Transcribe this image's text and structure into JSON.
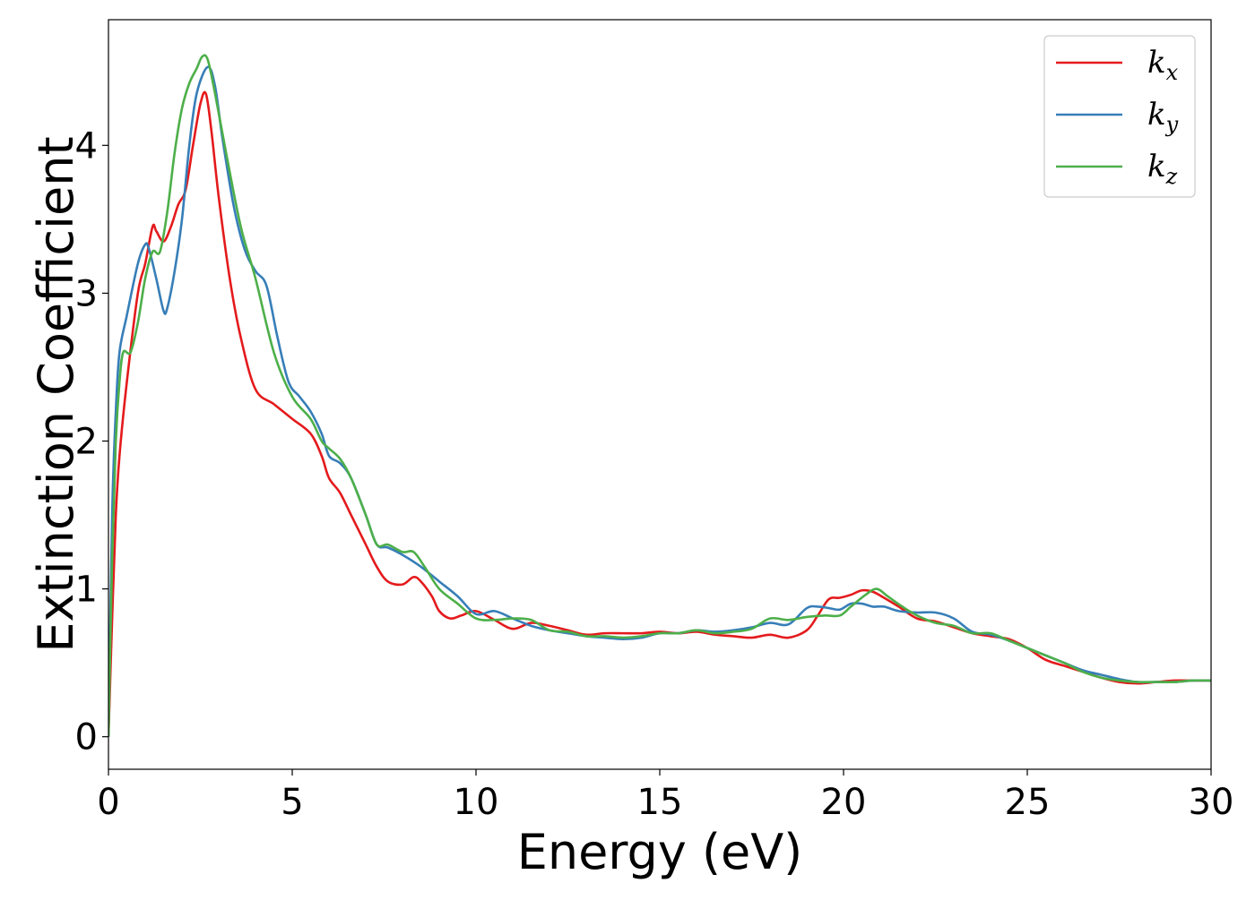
{
  "chart_data": {
    "type": "line",
    "title": "",
    "xlabel": "Energy (eV)",
    "ylabel": "Extinction Coefficient",
    "xlim": [
      0,
      30
    ],
    "ylim": [
      -0.22,
      4.85
    ],
    "xticks": [
      0,
      5,
      10,
      15,
      20,
      25,
      30
    ],
    "yticks": [
      0,
      1,
      2,
      3,
      4
    ],
    "grid": false,
    "legend_position": "top-right",
    "series": [
      {
        "name": "k",
        "subscript": "x",
        "color": "#e41a1c",
        "x": [
          0.0,
          0.1,
          0.2,
          0.3,
          0.5,
          0.8,
          1.0,
          1.2,
          1.3,
          1.5,
          1.7,
          1.9,
          2.1,
          2.3,
          2.5,
          2.65,
          2.8,
          3.0,
          3.3,
          3.6,
          4.0,
          4.5,
          5.0,
          5.5,
          5.8,
          6.0,
          6.3,
          6.6,
          7.0,
          7.3,
          7.6,
          8.0,
          8.3,
          8.5,
          8.8,
          9.0,
          9.3,
          9.6,
          10.0,
          10.5,
          11.0,
          11.5,
          12.0,
          12.5,
          13.0,
          13.5,
          14.0,
          14.5,
          15.0,
          15.5,
          16.0,
          16.5,
          17.0,
          17.5,
          18.0,
          18.5,
          19.0,
          19.3,
          19.6,
          19.9,
          20.2,
          20.5,
          20.8,
          21.1,
          21.5,
          22.0,
          22.5,
          23.0,
          23.5,
          24.0,
          24.5,
          25.0,
          25.5,
          26.0,
          26.5,
          27.0,
          27.5,
          28.0,
          28.5,
          29.0,
          29.5,
          30.0
        ],
        "y": [
          0.0,
          0.8,
          1.5,
          1.9,
          2.4,
          3.0,
          3.2,
          3.45,
          3.42,
          3.35,
          3.45,
          3.6,
          3.7,
          4.0,
          4.28,
          4.35,
          4.1,
          3.65,
          3.1,
          2.7,
          2.35,
          2.25,
          2.15,
          2.05,
          1.9,
          1.75,
          1.65,
          1.5,
          1.3,
          1.15,
          1.05,
          1.03,
          1.08,
          1.05,
          0.95,
          0.85,
          0.8,
          0.82,
          0.85,
          0.79,
          0.73,
          0.77,
          0.75,
          0.72,
          0.69,
          0.7,
          0.7,
          0.7,
          0.71,
          0.7,
          0.71,
          0.69,
          0.68,
          0.67,
          0.69,
          0.67,
          0.72,
          0.82,
          0.93,
          0.94,
          0.96,
          0.99,
          0.98,
          0.94,
          0.88,
          0.8,
          0.78,
          0.74,
          0.7,
          0.68,
          0.66,
          0.6,
          0.52,
          0.48,
          0.44,
          0.4,
          0.37,
          0.36,
          0.37,
          0.38,
          0.38,
          0.38
        ]
      },
      {
        "name": "k",
        "subscript": "y",
        "color": "#377eb8",
        "x": [
          0.0,
          0.1,
          0.2,
          0.3,
          0.5,
          0.8,
          1.0,
          1.1,
          1.3,
          1.5,
          1.6,
          1.8,
          2.0,
          2.2,
          2.4,
          2.7,
          2.9,
          3.1,
          3.4,
          3.7,
          4.0,
          4.3,
          4.6,
          4.9,
          5.2,
          5.5,
          5.8,
          6.0,
          6.3,
          6.6,
          7.0,
          7.3,
          7.6,
          8.0,
          8.5,
          9.0,
          9.5,
          10.0,
          10.5,
          11.0,
          11.5,
          12.0,
          12.5,
          13.0,
          13.5,
          14.0,
          14.5,
          15.0,
          15.5,
          16.0,
          16.5,
          17.0,
          17.5,
          18.0,
          18.5,
          19.0,
          19.3,
          19.6,
          19.9,
          20.2,
          20.5,
          20.8,
          21.1,
          21.5,
          22.0,
          22.5,
          23.0,
          23.5,
          24.0,
          24.5,
          25.0,
          25.5,
          26.0,
          26.5,
          27.0,
          27.5,
          28.0,
          28.5,
          29.0,
          29.5,
          30.0
        ],
        "y": [
          0.0,
          1.5,
          2.2,
          2.6,
          2.85,
          3.2,
          3.33,
          3.3,
          3.1,
          2.88,
          2.9,
          3.15,
          3.5,
          4.0,
          4.35,
          4.53,
          4.4,
          4.05,
          3.6,
          3.3,
          3.15,
          3.05,
          2.7,
          2.4,
          2.3,
          2.2,
          2.05,
          1.9,
          1.85,
          1.75,
          1.5,
          1.3,
          1.28,
          1.23,
          1.15,
          1.05,
          0.95,
          0.83,
          0.85,
          0.8,
          0.75,
          0.72,
          0.7,
          0.68,
          0.67,
          0.66,
          0.67,
          0.7,
          0.7,
          0.72,
          0.71,
          0.72,
          0.74,
          0.77,
          0.76,
          0.87,
          0.88,
          0.87,
          0.86,
          0.9,
          0.9,
          0.88,
          0.88,
          0.85,
          0.84,
          0.84,
          0.8,
          0.71,
          0.69,
          0.65,
          0.6,
          0.55,
          0.5,
          0.45,
          0.42,
          0.39,
          0.37,
          0.37,
          0.37,
          0.38,
          0.38
        ]
      },
      {
        "name": "k",
        "subscript": "z",
        "color": "#4daf4a",
        "x": [
          0.0,
          0.1,
          0.2,
          0.3,
          0.4,
          0.6,
          0.8,
          1.0,
          1.2,
          1.4,
          1.6,
          1.8,
          2.0,
          2.2,
          2.4,
          2.55,
          2.7,
          2.9,
          3.2,
          3.6,
          4.0,
          4.5,
          5.0,
          5.5,
          5.8,
          6.0,
          6.3,
          6.6,
          7.0,
          7.3,
          7.6,
          8.0,
          8.3,
          8.6,
          9.0,
          9.5,
          10.0,
          10.5,
          11.0,
          11.5,
          12.0,
          12.5,
          13.0,
          13.5,
          14.0,
          14.5,
          15.0,
          15.5,
          16.0,
          16.5,
          17.0,
          17.5,
          18.0,
          18.5,
          19.0,
          19.5,
          19.9,
          20.2,
          20.6,
          20.9,
          21.2,
          21.6,
          22.0,
          22.5,
          23.0,
          23.5,
          24.0,
          24.5,
          25.0,
          25.5,
          26.0,
          26.5,
          27.0,
          27.5,
          28.0,
          28.5,
          29.0,
          29.5,
          30.0
        ],
        "y": [
          0.0,
          1.2,
          2.0,
          2.4,
          2.6,
          2.6,
          2.8,
          3.1,
          3.28,
          3.28,
          3.55,
          3.95,
          4.25,
          4.42,
          4.52,
          4.6,
          4.58,
          4.35,
          3.95,
          3.45,
          3.1,
          2.6,
          2.3,
          2.15,
          2.0,
          1.95,
          1.88,
          1.75,
          1.5,
          1.3,
          1.3,
          1.25,
          1.25,
          1.15,
          1.0,
          0.9,
          0.8,
          0.79,
          0.8,
          0.79,
          0.72,
          0.71,
          0.68,
          0.68,
          0.67,
          0.68,
          0.7,
          0.7,
          0.72,
          0.7,
          0.71,
          0.73,
          0.8,
          0.79,
          0.81,
          0.82,
          0.82,
          0.88,
          0.96,
          1.0,
          0.95,
          0.88,
          0.82,
          0.77,
          0.75,
          0.7,
          0.7,
          0.65,
          0.6,
          0.55,
          0.5,
          0.44,
          0.4,
          0.38,
          0.37,
          0.37,
          0.37,
          0.38,
          0.38
        ]
      }
    ]
  }
}
